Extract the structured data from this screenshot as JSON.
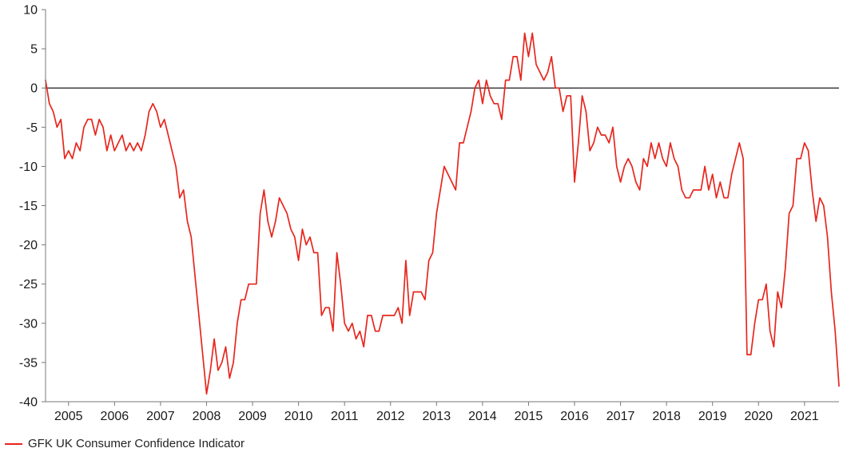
{
  "chart_data": {
    "type": "line",
    "legend": "GFK UK Consumer Confidence Indicator",
    "line_color": "#e7261d",
    "zero_line_color": "#404040",
    "axis_color": "#777777",
    "grid": false,
    "legend_position": "bottom-left",
    "ylim": [
      -40,
      10
    ],
    "yticks": [
      10,
      5,
      0,
      -5,
      -10,
      -15,
      -20,
      -25,
      -30,
      -35,
      -40
    ],
    "x_year_labels": [
      2005,
      2006,
      2007,
      2008,
      2009,
      2010,
      2011,
      2012,
      2013,
      2014,
      2015,
      2016,
      2017,
      2018,
      2019,
      2020,
      2021
    ],
    "frequency": "monthly",
    "start_year": 2005,
    "start_month": 1,
    "end_year": 2022,
    "end_month": 4,
    "values": [
      1,
      -2,
      -3,
      -5,
      -4,
      -9,
      -8,
      -9,
      -7,
      -8,
      -5,
      -4,
      -4,
      -6,
      -4,
      -5,
      -8,
      -6,
      -8,
      -7,
      -6,
      -8,
      -7,
      -8,
      -7,
      -8,
      -6,
      -3,
      -2,
      -3,
      -5,
      -4,
      -6,
      -8,
      -10,
      -14,
      -13,
      -17,
      -19,
      -24,
      -29,
      -34,
      -39,
      -36,
      -32,
      -36,
      -35,
      -33,
      -37,
      -35,
      -30,
      -27,
      -27,
      -25,
      -25,
      -25,
      -16,
      -13,
      -17,
      -19,
      -17,
      -14,
      -15,
      -16,
      -18,
      -19,
      -22,
      -18,
      -20,
      -19,
      -21,
      -21,
      -29,
      -28,
      -28,
      -31,
      -21,
      -25,
      -30,
      -31,
      -30,
      -32,
      -31,
      -33,
      -29,
      -29,
      -31,
      -31,
      -29,
      -29,
      -29,
      -29,
      -28,
      -30,
      -22,
      -29,
      -26,
      -26,
      -26,
      -27,
      -22,
      -21,
      -16,
      -13,
      -10,
      -11,
      -12,
      -13,
      -7,
      -7,
      -5,
      -3,
      0,
      1,
      -2,
      1,
      -1,
      -2,
      -2,
      -4,
      1,
      1,
      4,
      4,
      1,
      7,
      4,
      7,
      3,
      2,
      1,
      2,
      4,
      0,
      0,
      -3,
      -1,
      -1,
      -12,
      -7,
      -1,
      -3,
      -8,
      -7,
      -5,
      -6,
      -6,
      -7,
      -5,
      -10,
      -12,
      -10,
      -9,
      -10,
      -12,
      -13,
      -9,
      -10,
      -7,
      -9,
      -7,
      -9,
      -10,
      -7,
      -9,
      -10,
      -13,
      -14,
      -14,
      -13,
      -13,
      -13,
      -10,
      -13,
      -11,
      -14,
      -12,
      -14,
      -14,
      -11,
      -9,
      -7,
      -9,
      -34,
      -34,
      -30,
      -27,
      -27,
      -25,
      -31,
      -33,
      -26,
      -28,
      -23,
      -16,
      -15,
      -9,
      -9,
      -7,
      -8,
      -13,
      -17,
      -14,
      -15,
      -19,
      -26,
      -31,
      -38
    ]
  }
}
